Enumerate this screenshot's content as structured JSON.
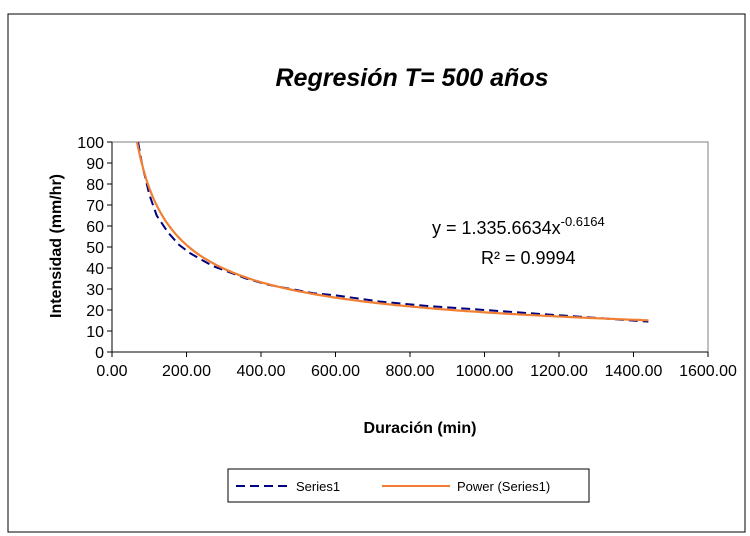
{
  "chart_data": {
    "type": "line",
    "title": "Regresión T= 500 años",
    "xlabel": "Duración  (min)",
    "ylabel": "Intensidad  (mm/hr)",
    "xlim": [
      0,
      1600
    ],
    "ylim": [
      0,
      100
    ],
    "x_ticks": [
      "0.00",
      "200.00",
      "400.00",
      "600.00",
      "800.00",
      "1000.00",
      "1200.00",
      "1400.00",
      "1600.00"
    ],
    "y_ticks": [
      "0",
      "10",
      "20",
      "30",
      "40",
      "50",
      "60",
      "70",
      "80",
      "90",
      "100"
    ],
    "grid": false,
    "legend_position": "bottom",
    "series": [
      {
        "name": "Series1",
        "color": "#000080",
        "style": "dashed",
        "x": [
          70,
          80,
          100,
          120,
          150,
          180,
          210,
          240,
          270,
          300,
          360,
          420,
          480,
          540,
          600,
          720,
          840,
          960,
          1080,
          1200,
          1320,
          1440
        ],
        "y": [
          100,
          90,
          75,
          65,
          57,
          51,
          47,
          44,
          41,
          39,
          35,
          32,
          30,
          28,
          27,
          24,
          22,
          20.5,
          19,
          17.5,
          16,
          14.5
        ]
      },
      {
        "name": "Power (Series1)",
        "color": "#f07f33",
        "style": "solid",
        "fit": {
          "type": "power",
          "a": 1335.6634,
          "b": -0.6164,
          "x_from": 67,
          "x_to": 1440
        }
      }
    ],
    "annotations": {
      "equation_prefix": "y = 1.335.6634x",
      "equation_exponent": "-0.6164",
      "r2": "R² = 0.9994"
    }
  }
}
